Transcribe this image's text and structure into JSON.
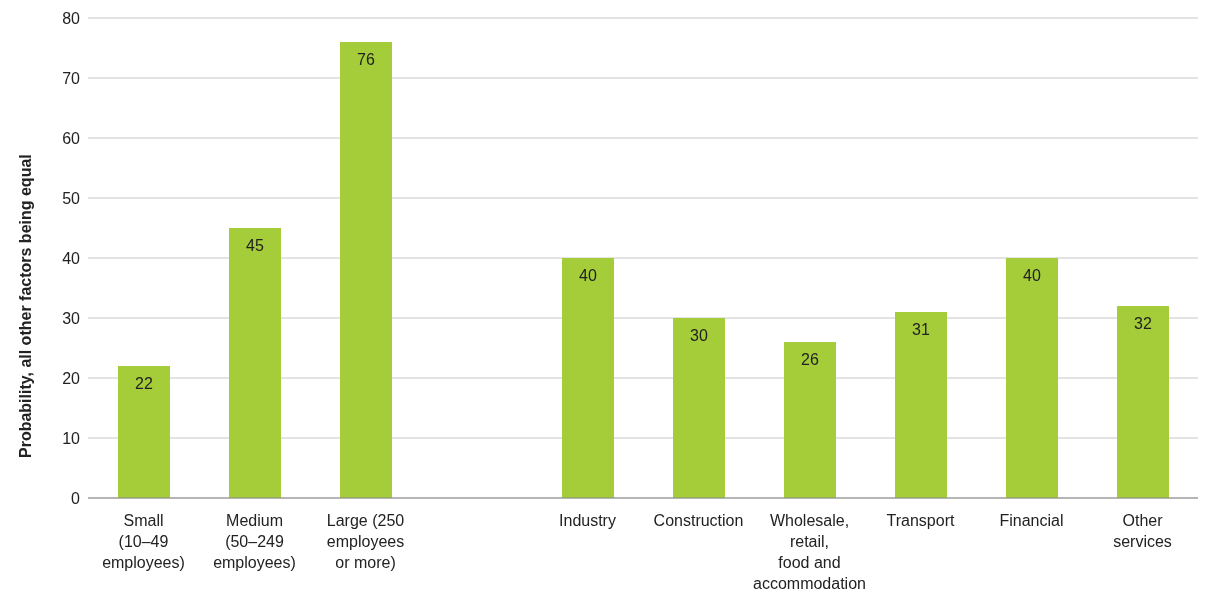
{
  "chart_data": {
    "type": "bar",
    "ylabel": "Probability, all other factors being equal",
    "categories": [
      "Small (10–49 employees)",
      "Medium (50–249 employees)",
      "Large (250 employees or more)",
      null,
      "Industry",
      "Construction",
      "Wholesale, retail, food and accommodation",
      "Transport",
      "Financial",
      "Other services"
    ],
    "values": [
      22,
      45,
      76,
      null,
      40,
      30,
      26,
      31,
      40,
      32
    ],
    "color": "#a5cd39",
    "ylim": [
      0,
      80
    ],
    "yticks": [
      0,
      10,
      20,
      30,
      40,
      50,
      60,
      70,
      80
    ],
    "grid": "y",
    "data_labels": true,
    "legend": false
  }
}
